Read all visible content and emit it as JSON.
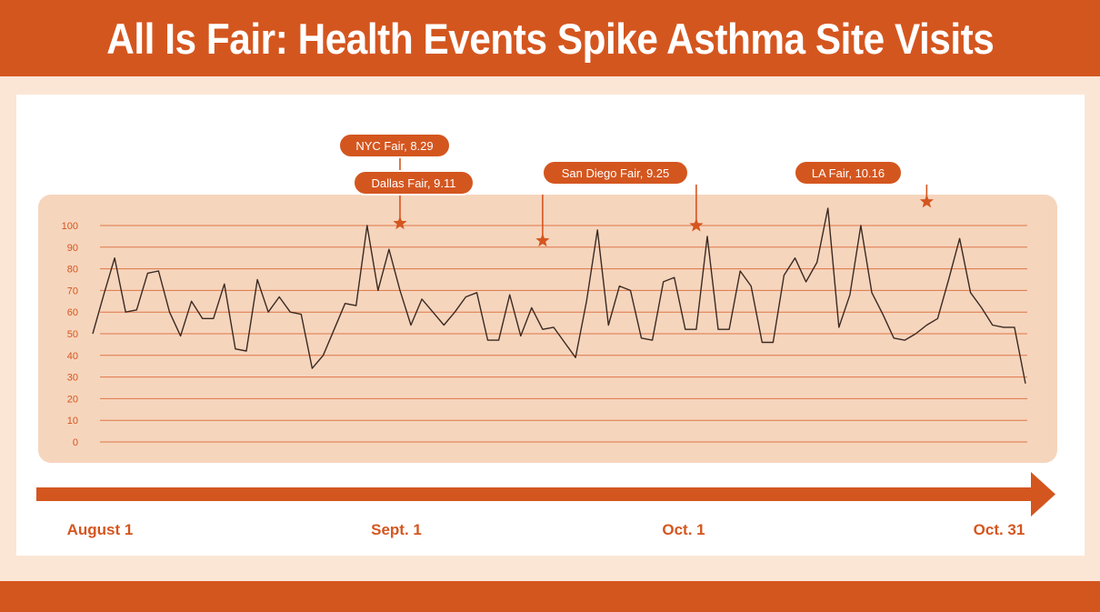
{
  "title": "All Is Fair: Health Events Spike Asthma Site Visits",
  "colors": {
    "accent": "#d4561f",
    "background": "#fbe6d6",
    "plot_area": "#f6d5bd",
    "line": "#3a2a22",
    "card": "#ffffff"
  },
  "chart_data": {
    "type": "line",
    "title": "All Is Fair: Health Events Spike Asthma Site Visits",
    "xlabel": "",
    "ylabel": "",
    "ylim": [
      0,
      100
    ],
    "yticks": [
      0,
      10,
      20,
      30,
      40,
      50,
      60,
      70,
      80,
      90,
      100
    ],
    "grid": true,
    "x_start": "August 1",
    "x_end": "Oct. 31",
    "time_labels": [
      {
        "label": "August 1",
        "day": 0
      },
      {
        "label": "Sept. 1",
        "day": 31
      },
      {
        "label": "Oct. 1",
        "day": 61
      },
      {
        "label": "Oct. 31",
        "day": 91
      }
    ],
    "series": [
      {
        "values": [
          50,
          68,
          85,
          60,
          61,
          78,
          79,
          60,
          49,
          65,
          57,
          57,
          73,
          43,
          42,
          75,
          60,
          67,
          60,
          59,
          34,
          40,
          52,
          64,
          63,
          100,
          70,
          89,
          70,
          54,
          66,
          60,
          54,
          60,
          67,
          69,
          47,
          47,
          68,
          49,
          62,
          52,
          53,
          46,
          39,
          65,
          98,
          54,
          72,
          70,
          48,
          47,
          74,
          76,
          52,
          52,
          95,
          52,
          52,
          79,
          72,
          46,
          46,
          77,
          85,
          74,
          83,
          108,
          53,
          68,
          100,
          69,
          59,
          48,
          47,
          50,
          54,
          57,
          75,
          94,
          69,
          62,
          54,
          53,
          53,
          27
        ]
      }
    ],
    "annotations": [
      {
        "label": "NYC Fair, 8.29",
        "day": 28,
        "value": 101
      },
      {
        "label": "Dallas Fair, 9.11",
        "day": 41,
        "value": 93
      },
      {
        "label": "San Diego Fair, 9.25",
        "day": 55,
        "value": 100
      },
      {
        "label": "LA Fair, 10.16",
        "day": 76,
        "value": 111
      }
    ]
  }
}
